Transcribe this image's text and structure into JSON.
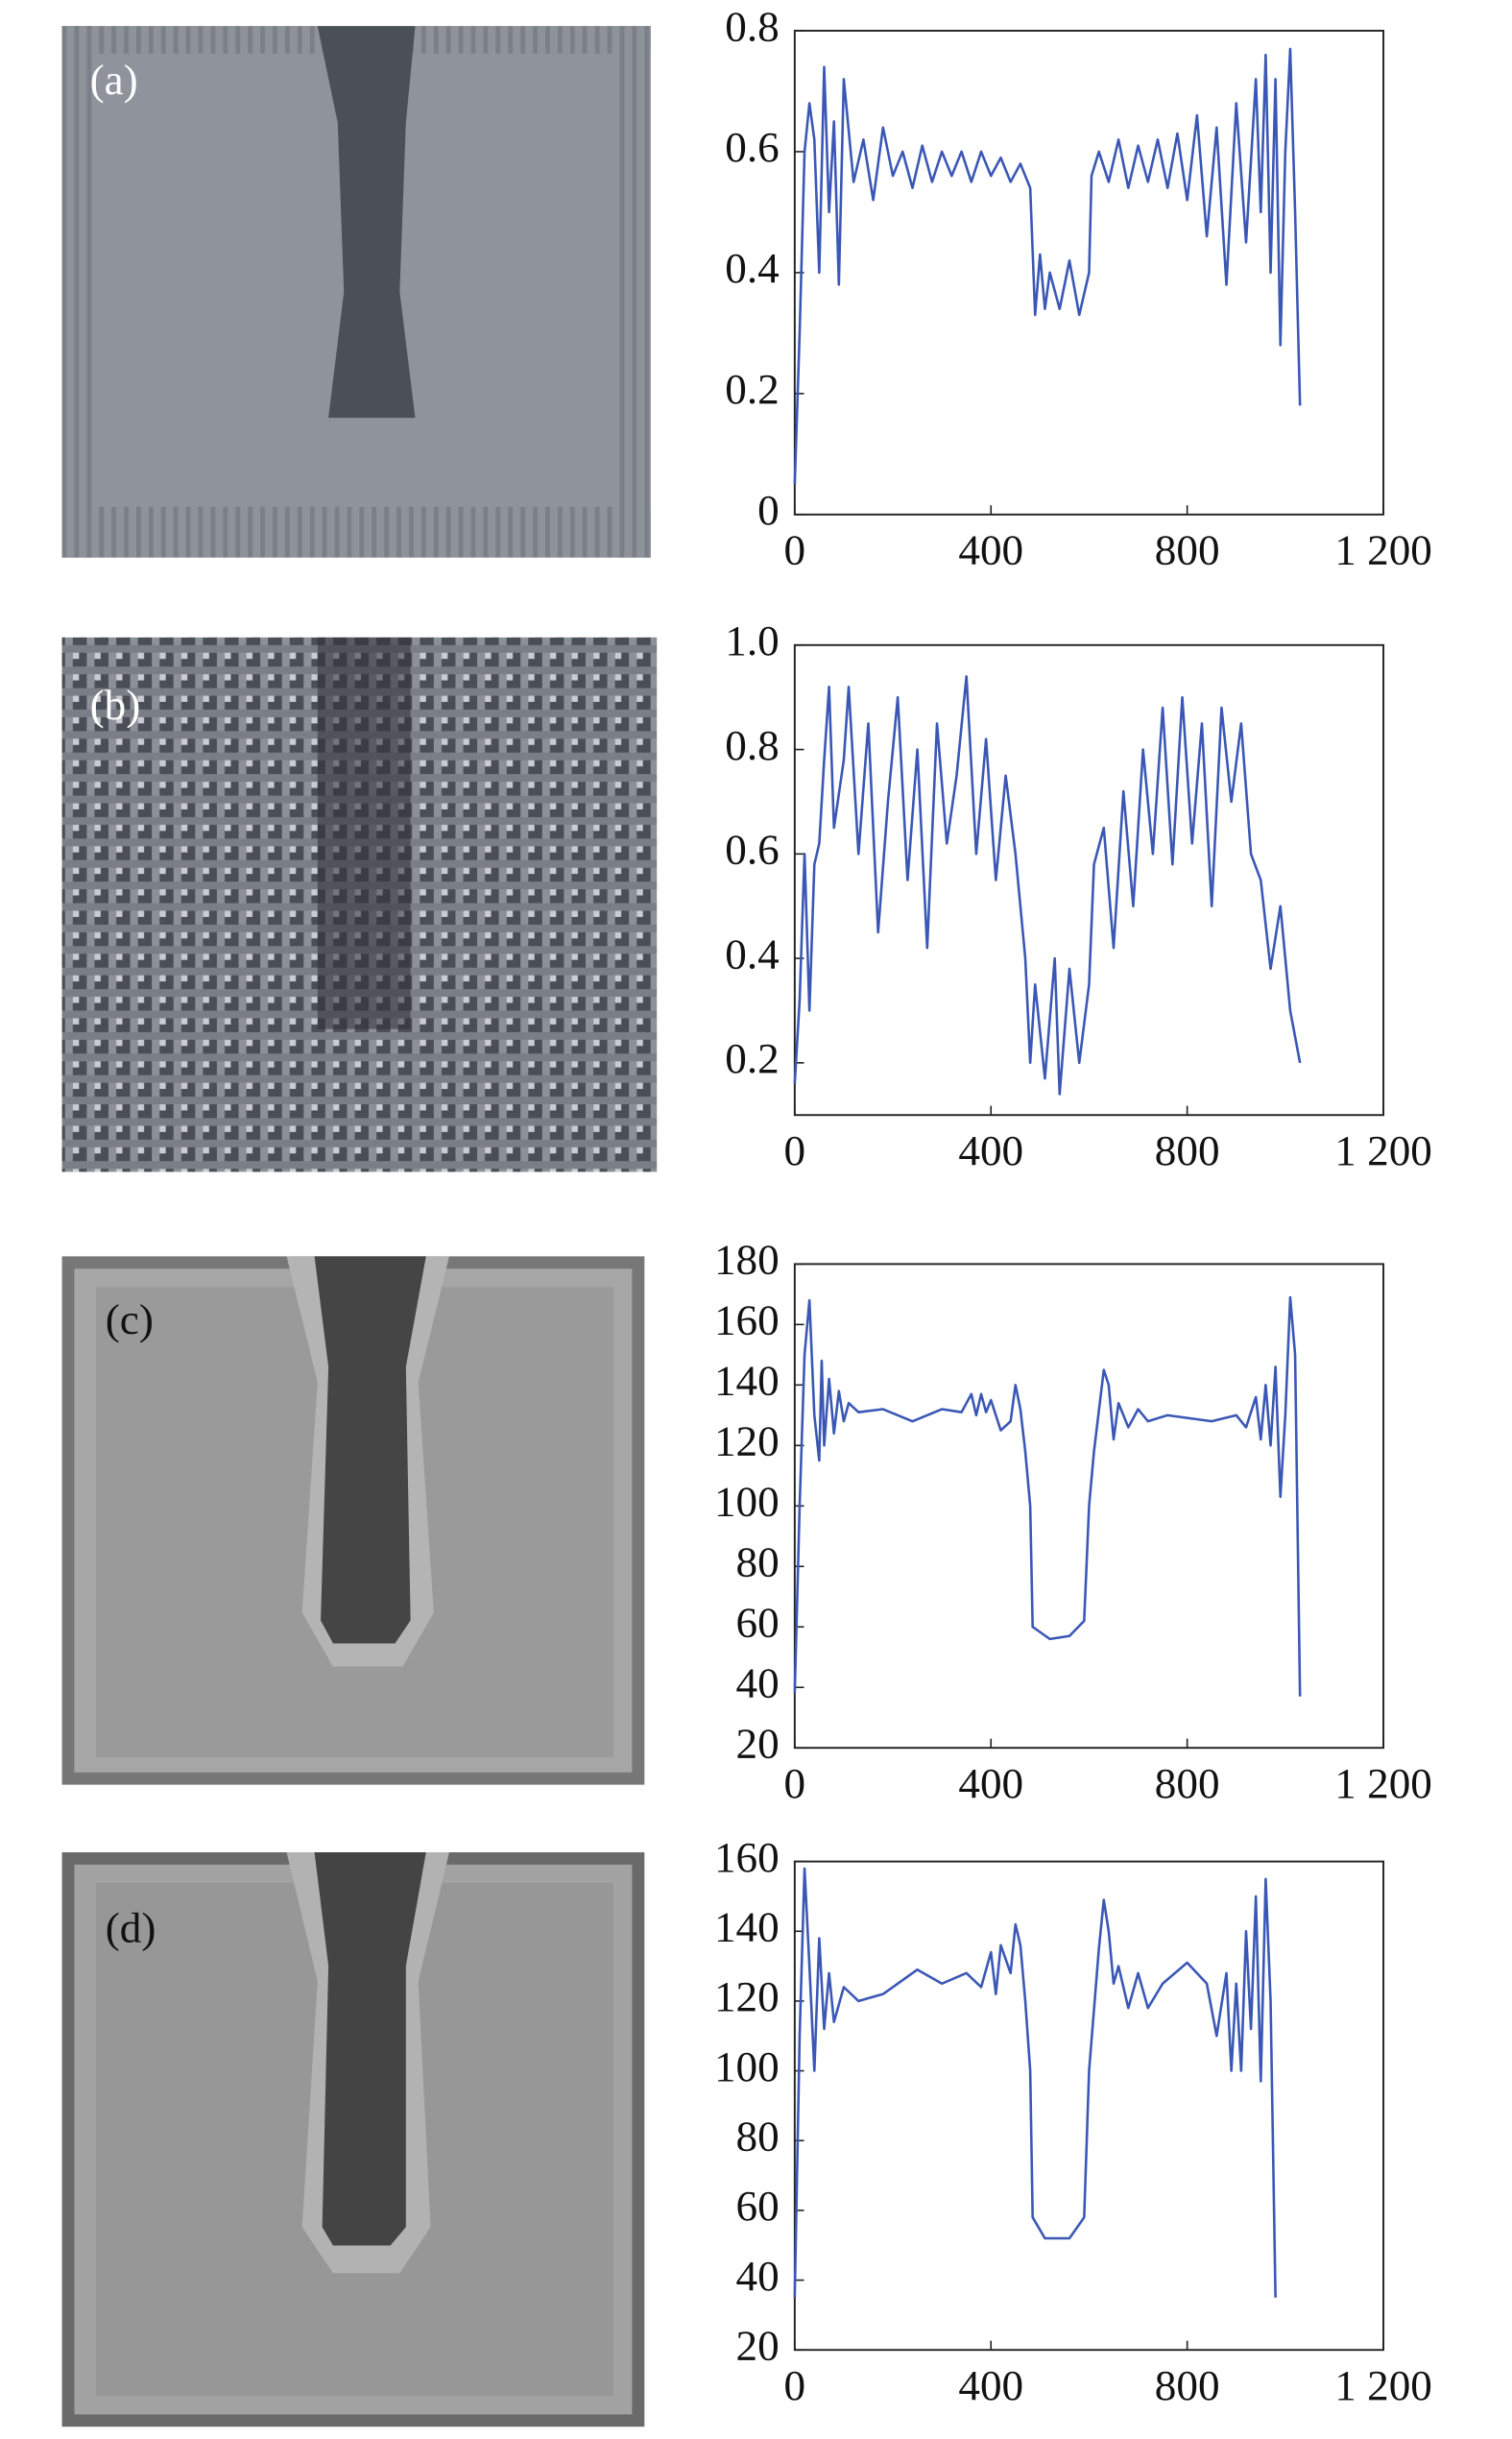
{
  "chart_data": [
    {
      "type": "line",
      "panel_label": "(a)",
      "color": "#3a57b5",
      "x": [
        0,
        10,
        20,
        30,
        40,
        50,
        60,
        70,
        80,
        90,
        100,
        120,
        140,
        160,
        180,
        200,
        220,
        240,
        260,
        280,
        300,
        320,
        340,
        360,
        380,
        400,
        420,
        440,
        460,
        480,
        490,
        500,
        510,
        520,
        540,
        560,
        580,
        600,
        605,
        620,
        640,
        660,
        680,
        700,
        720,
        740,
        760,
        780,
        800,
        820,
        840,
        860,
        880,
        900,
        920,
        940,
        950,
        960,
        970,
        980,
        990,
        1000,
        1010,
        1020,
        1030
      ],
      "values": [
        0.05,
        0.3,
        0.6,
        0.68,
        0.62,
        0.4,
        0.74,
        0.5,
        0.65,
        0.38,
        0.72,
        0.55,
        0.62,
        0.52,
        0.64,
        0.56,
        0.6,
        0.54,
        0.61,
        0.55,
        0.6,
        0.56,
        0.6,
        0.55,
        0.6,
        0.56,
        0.59,
        0.55,
        0.58,
        0.54,
        0.33,
        0.43,
        0.34,
        0.4,
        0.34,
        0.42,
        0.33,
        0.4,
        0.56,
        0.6,
        0.55,
        0.62,
        0.54,
        0.61,
        0.55,
        0.62,
        0.54,
        0.63,
        0.52,
        0.66,
        0.46,
        0.64,
        0.38,
        0.68,
        0.45,
        0.72,
        0.5,
        0.76,
        0.4,
        0.72,
        0.28,
        0.6,
        0.77,
        0.5,
        0.18
      ],
      "xlim": [
        0,
        1200
      ],
      "xticks": [
        0,
        400,
        800,
        {
          "value": 1200,
          "label": "1 200"
        }
      ],
      "ylim": [
        0,
        0.8
      ],
      "yticks": [
        0,
        0.2,
        0.4,
        0.6,
        0.8
      ]
    },
    {
      "type": "line",
      "panel_label": "(b)",
      "color": "#3a57b5",
      "x": [
        0,
        10,
        20,
        30,
        40,
        50,
        60,
        70,
        80,
        100,
        110,
        130,
        150,
        170,
        190,
        210,
        230,
        250,
        270,
        290,
        310,
        330,
        350,
        370,
        390,
        410,
        430,
        450,
        470,
        480,
        490,
        510,
        530,
        540,
        560,
        580,
        600,
        610,
        630,
        650,
        670,
        690,
        710,
        730,
        750,
        770,
        790,
        810,
        830,
        850,
        870,
        890,
        910,
        930,
        950,
        970,
        990,
        1010,
        1030
      ],
      "values": [
        0.16,
        0.32,
        0.6,
        0.3,
        0.58,
        0.62,
        0.78,
        0.92,
        0.65,
        0.78,
        0.92,
        0.6,
        0.85,
        0.45,
        0.7,
        0.9,
        0.55,
        0.8,
        0.42,
        0.85,
        0.62,
        0.75,
        0.94,
        0.6,
        0.82,
        0.55,
        0.75,
        0.6,
        0.4,
        0.2,
        0.35,
        0.17,
        0.4,
        0.14,
        0.38,
        0.2,
        0.35,
        0.58,
        0.65,
        0.42,
        0.72,
        0.5,
        0.8,
        0.6,
        0.88,
        0.58,
        0.9,
        0.62,
        0.85,
        0.5,
        0.88,
        0.7,
        0.85,
        0.6,
        0.55,
        0.38,
        0.5,
        0.3,
        0.2
      ],
      "xlim": [
        0,
        1200
      ],
      "xticks": [
        0,
        400,
        800,
        {
          "value": 1200,
          "label": "1 200"
        }
      ],
      "ylim": [
        0.1,
        1.0
      ],
      "yticks": [
        0.2,
        0.4,
        0.6,
        0.8,
        {
          "value": 1.0,
          "label": "1.0"
        }
      ]
    },
    {
      "type": "line",
      "panel_label": "(c)",
      "color": "#3a57b5",
      "x": [
        0,
        10,
        20,
        30,
        40,
        50,
        55,
        60,
        70,
        80,
        90,
        100,
        110,
        130,
        180,
        240,
        300,
        340,
        360,
        370,
        380,
        390,
        400,
        420,
        440,
        450,
        460,
        470,
        480,
        485,
        520,
        560,
        590,
        600,
        610,
        630,
        640,
        650,
        660,
        680,
        700,
        720,
        760,
        850,
        900,
        920,
        940,
        950,
        960,
        970,
        980,
        990,
        1000,
        1010,
        1020,
        1030
      ],
      "values": [
        38,
        100,
        150,
        168,
        130,
        115,
        148,
        120,
        142,
        124,
        138,
        128,
        134,
        131,
        132,
        128,
        132,
        131,
        137,
        130,
        137,
        131,
        135,
        125,
        128,
        140,
        132,
        118,
        100,
        60,
        56,
        57,
        62,
        100,
        118,
        145,
        140,
        122,
        134,
        126,
        132,
        128,
        130,
        128,
        130,
        126,
        136,
        122,
        140,
        120,
        146,
        103,
        130,
        169,
        150,
        37
      ],
      "xlim": [
        0,
        1200
      ],
      "xticks": [
        0,
        400,
        800,
        {
          "value": 1200,
          "label": "1 200"
        }
      ],
      "ylim": [
        20,
        180
      ],
      "yticks": [
        20,
        40,
        60,
        80,
        100,
        120,
        140,
        160,
        180
      ]
    },
    {
      "type": "line",
      "panel_label": "(d)",
      "color": "#3a57b5",
      "x": [
        0,
        10,
        20,
        30,
        40,
        50,
        60,
        70,
        80,
        100,
        130,
        180,
        250,
        300,
        350,
        380,
        400,
        410,
        420,
        440,
        450,
        460,
        470,
        480,
        485,
        510,
        560,
        590,
        600,
        620,
        630,
        640,
        650,
        660,
        680,
        700,
        720,
        750,
        800,
        840,
        860,
        880,
        890,
        900,
        910,
        920,
        930,
        940,
        950,
        960,
        970,
        980
      ],
      "values": [
        35,
        110,
        158,
        130,
        100,
        138,
        112,
        128,
        114,
        124,
        120,
        122,
        129,
        125,
        128,
        124,
        134,
        122,
        136,
        128,
        142,
        136,
        120,
        100,
        58,
        52,
        52,
        58,
        100,
        135,
        149,
        140,
        125,
        130,
        118,
        128,
        118,
        125,
        131,
        125,
        110,
        128,
        100,
        125,
        100,
        140,
        112,
        150,
        97,
        155,
        120,
        35
      ],
      "xlim": [
        0,
        1200
      ],
      "xticks": [
        0,
        400,
        800,
        {
          "value": 1200,
          "label": "1 200"
        }
      ],
      "ylim": [
        20,
        160
      ],
      "yticks": [
        20,
        40,
        60,
        80,
        100,
        120,
        140,
        160
      ]
    }
  ]
}
